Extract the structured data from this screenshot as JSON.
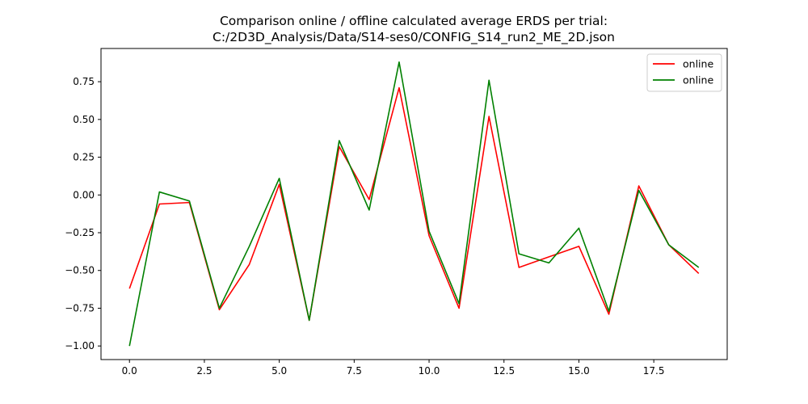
{
  "chart_data": {
    "type": "line",
    "title_line1": "Comparison online / offline calculated average ERDS per trial:",
    "title_line2": "C:/2D3D_Analysis/Data/S14-ses0/CONFIG_S14_run2_ME_2D.json",
    "xlabel": "",
    "ylabel": "",
    "xlim": [
      -0.95,
      19.95
    ],
    "ylim": [
      -1.09,
      0.97
    ],
    "xticks": [
      0.0,
      2.5,
      5.0,
      7.5,
      10.0,
      12.5,
      15.0,
      17.5
    ],
    "xtick_labels": [
      "0.0",
      "2.5",
      "5.0",
      "7.5",
      "10.0",
      "12.5",
      "15.0",
      "17.5"
    ],
    "yticks": [
      -1.0,
      -0.75,
      -0.5,
      -0.25,
      0.0,
      0.25,
      0.5,
      0.75
    ],
    "ytick_labels": [
      "−1.00",
      "−0.75",
      "−0.50",
      "−0.25",
      "0.00",
      "0.25",
      "0.50",
      "0.75"
    ],
    "grid": false,
    "legend_position": "top-right",
    "x": [
      0,
      1,
      2,
      3,
      4,
      5,
      6,
      7,
      8,
      9,
      10,
      11,
      12,
      13,
      14,
      15,
      16,
      17,
      18,
      19
    ],
    "series": [
      {
        "name": "online",
        "color": "#ff0000",
        "values": [
          -0.62,
          -0.06,
          -0.05,
          -0.76,
          -0.46,
          0.07,
          -0.83,
          0.32,
          -0.03,
          0.71,
          -0.27,
          -0.75,
          0.52,
          -0.48,
          -0.41,
          -0.34,
          -0.79,
          0.06,
          -0.33,
          -0.52
        ]
      },
      {
        "name": "online",
        "color": "#008000",
        "values": [
          -1.0,
          0.02,
          -0.04,
          -0.75,
          -0.34,
          0.11,
          -0.83,
          0.36,
          -0.1,
          0.88,
          -0.24,
          -0.72,
          0.76,
          -0.39,
          -0.45,
          -0.22,
          -0.77,
          0.03,
          -0.33,
          -0.48
        ]
      }
    ]
  }
}
